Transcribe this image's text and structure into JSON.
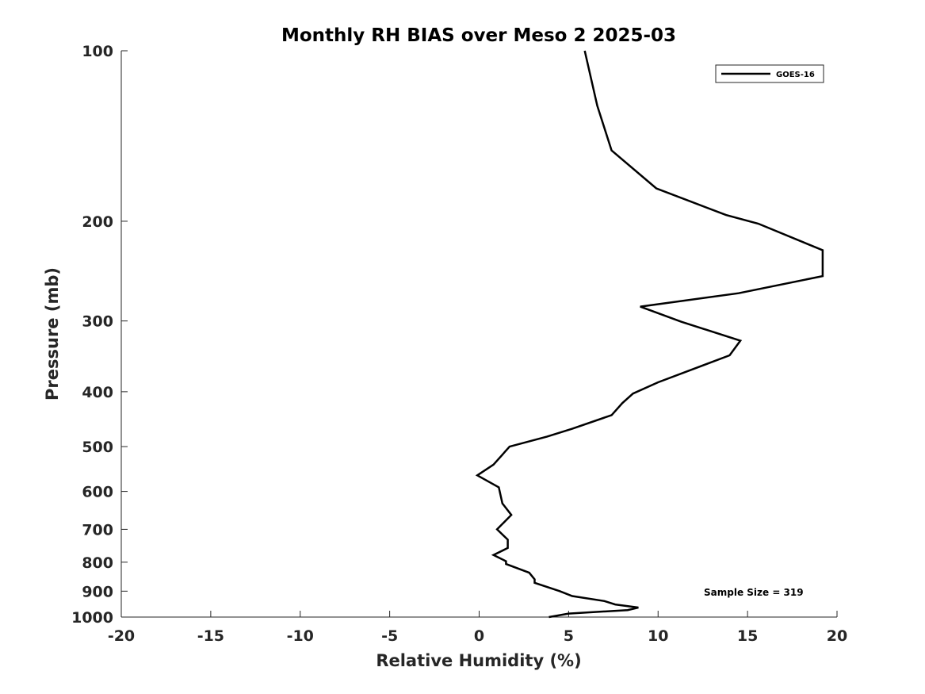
{
  "chart_data": {
    "type": "line",
    "title": "Monthly RH BIAS over Meso 2  2025-03",
    "xlabel": "Relative Humidity (%)",
    "ylabel": "Pressure (mb)",
    "xlim": [
      -20,
      20
    ],
    "ylim": [
      100,
      1000
    ],
    "yscale": "log",
    "y_reversed": true,
    "grid": false,
    "xticks": [
      -20,
      -15,
      -10,
      -5,
      0,
      5,
      10,
      15,
      20
    ],
    "xtick_labels": [
      "-20",
      "-15",
      "-10",
      "-5",
      "0",
      "5",
      "10",
      "15",
      "20"
    ],
    "yticks": [
      100,
      200,
      300,
      400,
      500,
      600,
      700,
      800,
      900,
      1000
    ],
    "ytick_labels": [
      "100",
      "200",
      "300",
      "400",
      "500",
      "600",
      "700",
      "800",
      "900",
      "1000"
    ],
    "legend": {
      "location": "top-right",
      "entries": [
        "GOES-16"
      ]
    },
    "annotation": "Sample Size = 319",
    "series": [
      {
        "name": "GOES-16",
        "color": "#000000",
        "points": [
          [
            5.9,
            100
          ],
          [
            6.6,
            125
          ],
          [
            7.4,
            150
          ],
          [
            9.9,
            175
          ],
          [
            13.8,
            195
          ],
          [
            15.6,
            202
          ],
          [
            19.2,
            225
          ],
          [
            19.2,
            250
          ],
          [
            14.5,
            268
          ],
          [
            9.0,
            283
          ],
          [
            11.3,
            301
          ],
          [
            14.6,
            325
          ],
          [
            14.0,
            345
          ],
          [
            10.0,
            385
          ],
          [
            8.6,
            403
          ],
          [
            8.0,
            419
          ],
          [
            7.4,
            440
          ],
          [
            5.2,
            465
          ],
          [
            3.8,
            480
          ],
          [
            1.7,
            500
          ],
          [
            0.8,
            538
          ],
          [
            -0.1,
            562
          ],
          [
            1.1,
            590
          ],
          [
            1.3,
            630
          ],
          [
            1.8,
            660
          ],
          [
            1.0,
            700
          ],
          [
            1.6,
            730
          ],
          [
            1.6,
            755
          ],
          [
            0.8,
            777
          ],
          [
            1.5,
            797
          ],
          [
            1.5,
            806
          ],
          [
            2.8,
            835
          ],
          [
            3.1,
            858
          ],
          [
            3.1,
            870
          ],
          [
            4.5,
            900
          ],
          [
            5.2,
            918
          ],
          [
            7.0,
            937
          ],
          [
            7.6,
            950
          ],
          [
            8.9,
            962
          ],
          [
            8.3,
            972
          ],
          [
            5.0,
            986
          ],
          [
            3.9,
            1000
          ]
        ]
      }
    ]
  }
}
